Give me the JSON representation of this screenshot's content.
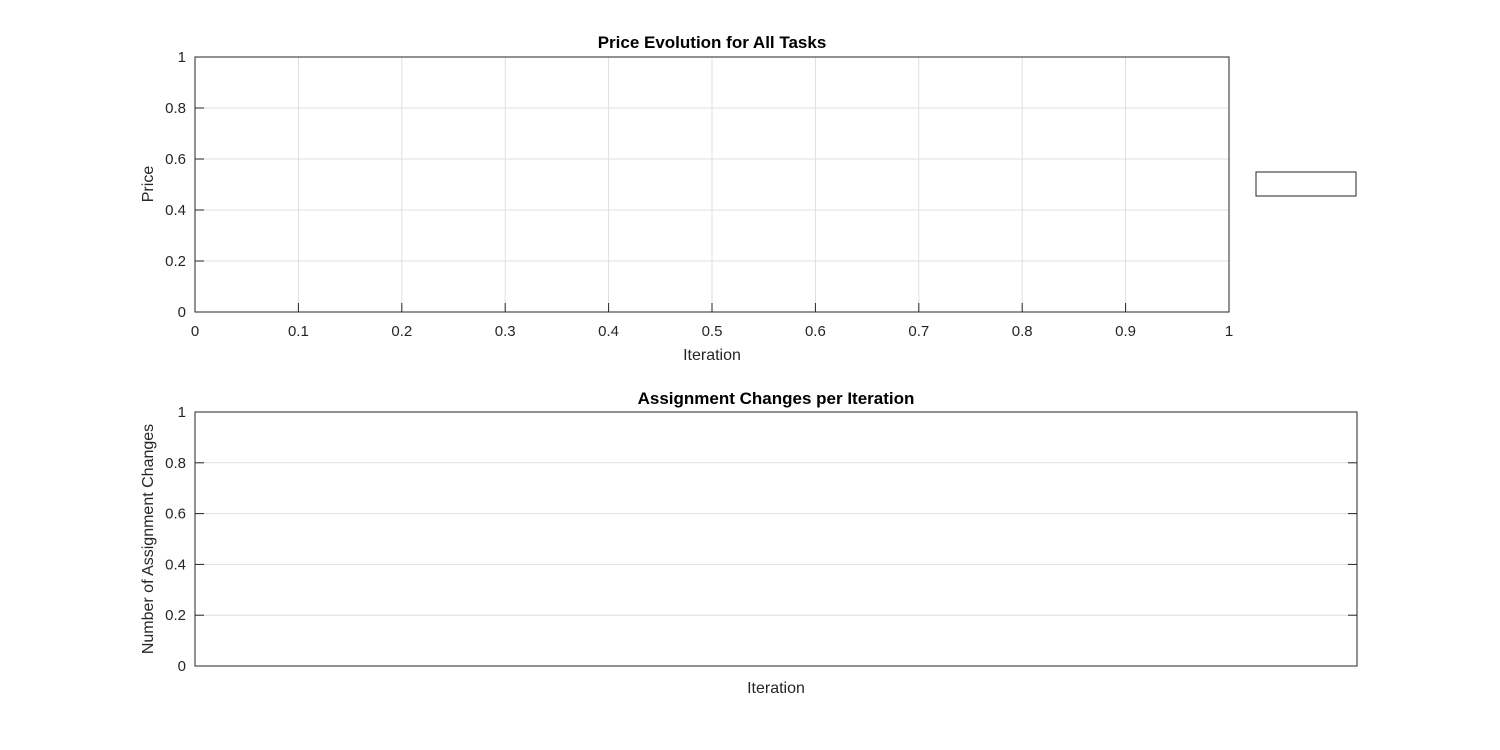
{
  "chart_data": [
    {
      "type": "line",
      "title": "Price Evolution for All Tasks",
      "xlabel": "Iteration",
      "ylabel": "Price",
      "xlim": [
        0,
        1
      ],
      "ylim": [
        0,
        1
      ],
      "xticks": [
        "0",
        "0.1",
        "0.2",
        "0.3",
        "0.4",
        "0.5",
        "0.6",
        "0.7",
        "0.8",
        "0.9",
        "1"
      ],
      "yticks": [
        "0",
        "0.2",
        "0.4",
        "0.6",
        "0.8",
        "1"
      ],
      "grid": true,
      "legend": "outside-right",
      "legend_entries": [],
      "series": []
    },
    {
      "type": "bar",
      "title": "Assignment Changes per Iteration",
      "xlabel": "Iteration",
      "ylabel": "Number of Assignment Changes",
      "ylim": [
        0,
        1
      ],
      "xticks": [],
      "yticks": [
        "0",
        "0.2",
        "0.4",
        "0.6",
        "0.8",
        "1"
      ],
      "grid": true,
      "categories": [],
      "values": []
    }
  ],
  "colors": {
    "axis": "#262626",
    "grid": "#dfdfdf",
    "background": "#ffffff"
  }
}
